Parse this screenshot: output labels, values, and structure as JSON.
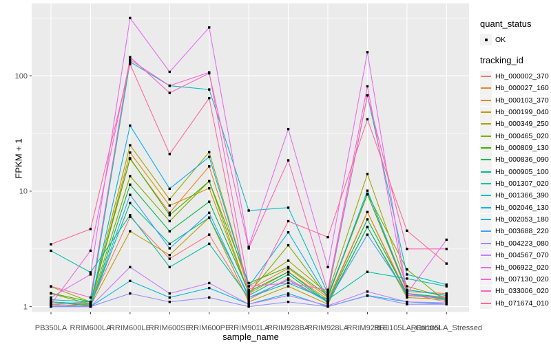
{
  "figure": {
    "x_axis_title": "sample_name",
    "y_axis_title": "FPKM + 1"
  },
  "legend": {
    "quant_status": {
      "title": "quant_status",
      "items": [
        {
          "label": "OK",
          "symbol": "point-icon",
          "color": "#000000"
        }
      ]
    },
    "tracking_id": {
      "title": "tracking_id"
    }
  },
  "colors": {
    "panel_background": "#EBEBEB",
    "grid": "#FFFFFF",
    "axis_text": "#4D4D4D",
    "tick": "#333333",
    "point": "#000000",
    "legend_key_background": "#F2F2F2"
  },
  "chart_data": {
    "type": "line",
    "xlabel": "sample_name",
    "ylabel": "FPKM + 1",
    "y_scale": "log10",
    "y_ticks": [
      1,
      10,
      100
    ],
    "y_minor_ticks": [
      3.162,
      31.62,
      316.2
    ],
    "ylim": [
      0.88,
      430
    ],
    "grid": "on",
    "legend_position": "right",
    "point_color": "#000000",
    "categories": [
      "PB350LA",
      "RRIM600LA",
      "RRIM600LE",
      "RRIM600SE",
      "RRIM600PE",
      "RRIM901LA",
      "RRIM928BA",
      "RRIM928LA",
      "RRIM928LE",
      "RRII105LA_Control",
      "RRII105LA_Stressed"
    ],
    "series": [
      {
        "name": "Hb_000002_370",
        "color": "#F8766D",
        "values": [
          1.1,
          1.05,
          6.0,
          2.6,
          4.2,
          1.15,
          1.75,
          1.1,
          6.6,
          1.3,
          1.1
        ]
      },
      {
        "name": "Hb_000027_160",
        "color": "#E88526",
        "values": [
          1.05,
          1.1,
          19.0,
          6.5,
          16.4,
          1.4,
          2.15,
          1.2,
          9.4,
          1.35,
          1.3
        ]
      },
      {
        "name": "Hb_000103_370",
        "color": "#D89000",
        "values": [
          1.02,
          1.05,
          21.6,
          7.5,
          10.6,
          1.3,
          2.0,
          1.15,
          6.6,
          1.25,
          1.2
        ]
      },
      {
        "name": "Hb_000199_040",
        "color": "#C09B00",
        "values": [
          1.0,
          1.02,
          4.5,
          2.8,
          5.9,
          1.1,
          1.5,
          1.05,
          4.9,
          1.2,
          1.15
        ]
      },
      {
        "name": "Hb_000349_250",
        "color": "#A3A500",
        "values": [
          1.49,
          1.1,
          25.0,
          8.5,
          21.8,
          1.5,
          2.5,
          1.3,
          14.1,
          1.5,
          1.2
        ]
      },
      {
        "name": "Hb_000465_020",
        "color": "#7CAE00",
        "values": [
          1.3,
          1.05,
          13.5,
          5.5,
          12.2,
          1.3,
          3.4,
          1.2,
          9.5,
          2.1,
          1.1
        ]
      },
      {
        "name": "Hb_000809_130",
        "color": "#39B600",
        "values": [
          1.31,
          1.1,
          19.3,
          6.2,
          12.2,
          1.6,
          2.2,
          1.25,
          9.4,
          1.4,
          1.25
        ]
      },
      {
        "name": "Hb_000836_090",
        "color": "#00BB4E",
        "values": [
          1.05,
          1.0,
          11.4,
          4.5,
          8.1,
          1.35,
          2.0,
          1.1,
          5.7,
          1.3,
          1.2
        ]
      },
      {
        "name": "Hb_000905_100",
        "color": "#00BF7D",
        "values": [
          1.1,
          1.02,
          7.9,
          3.5,
          5.9,
          1.25,
          1.9,
          1.08,
          4.9,
          1.25,
          1.18
        ]
      },
      {
        "name": "Hb_001307_020",
        "color": "#00C1A3",
        "values": [
          3.05,
          1.98,
          6.2,
          2.2,
          3.5,
          1.2,
          1.6,
          1.15,
          2.0,
          1.75,
          1.5
        ]
      },
      {
        "name": "Hb_001366_390",
        "color": "#00BFC4",
        "values": [
          1.15,
          1.1,
          132,
          82,
          76,
          6.8,
          7.2,
          1.3,
          67.6,
          1.9,
          1.55
        ]
      },
      {
        "name": "Hb_002046_130",
        "color": "#00BAE0",
        "values": [
          1.0,
          1.0,
          1.67,
          1.2,
          1.45,
          1.05,
          1.3,
          1.0,
          1.25,
          1.1,
          1.05
        ]
      },
      {
        "name": "Hb_002053_180",
        "color": "#00B0F6",
        "values": [
          1.1,
          1.05,
          37,
          10.5,
          19.8,
          1.5,
          4.4,
          1.2,
          10.1,
          1.4,
          1.25
        ]
      },
      {
        "name": "Hb_003688_220",
        "color": "#35A2FF",
        "values": [
          1.05,
          1.0,
          9.3,
          3.2,
          6.5,
          1.2,
          1.7,
          1.1,
          4.2,
          1.3,
          1.15
        ]
      },
      {
        "name": "Hb_004223_080",
        "color": "#9590FF",
        "values": [
          1.0,
          1.0,
          1.3,
          1.1,
          1.2,
          1.0,
          1.1,
          1.0,
          1.24,
          1.05,
          1.05
        ]
      },
      {
        "name": "Hb_004567_070",
        "color": "#C77CFF",
        "values": [
          1.05,
          1.0,
          2.2,
          1.3,
          1.6,
          1.05,
          1.25,
          1.02,
          1.35,
          1.1,
          1.08
        ]
      },
      {
        "name": "Hb_006922_020",
        "color": "#E76BF3",
        "values": [
          1.2,
          1.9,
          316,
          108,
          262,
          3.3,
          34.5,
          2.2,
          160,
          1.3,
          3.8
        ]
      },
      {
        "name": "Hb_007130_020",
        "color": "#FA62DB",
        "values": [
          1.05,
          3.05,
          138,
          82,
          107,
          1.5,
          1.6,
          1.4,
          81,
          1.25,
          1.2
        ]
      },
      {
        "name": "Hb_033006_020",
        "color": "#FF62BC",
        "values": [
          1.5,
          1.2,
          145,
          71,
          105,
          3.2,
          18.5,
          1.35,
          67.6,
          3.16,
          3.16
        ]
      },
      {
        "name": "Hb_071674_010",
        "color": "#FF6A98",
        "values": [
          3.47,
          4.7,
          126,
          21,
          64,
          1.2,
          5.5,
          4.0,
          42,
          4.55,
          2.36
        ]
      }
    ]
  }
}
